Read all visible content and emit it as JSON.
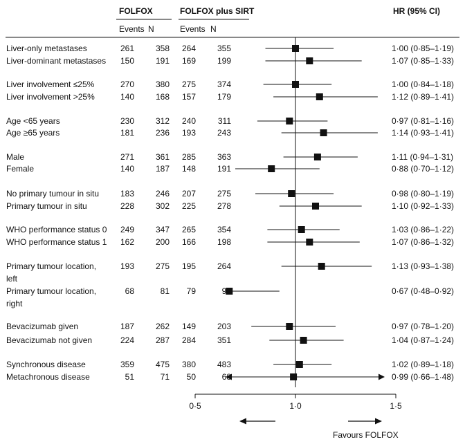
{
  "header": {
    "group1": "FOLFOX",
    "group2": "FOLFOX plus SIRT",
    "events": "Events",
    "n": "N",
    "hr_col": "HR (95% CI)"
  },
  "footer": {
    "favours": "Favours FOLFOX"
  },
  "chart_data": {
    "type": "forest",
    "xlim": [
      0.5,
      1.5
    ],
    "xticks": [
      0.5,
      1.0,
      1.5
    ],
    "xtick_labels": [
      "0·5",
      "1·0",
      "1·5"
    ],
    "reference_line": 1.0,
    "rows": [
      {
        "label": [
          "Liver-only metastases"
        ],
        "e1": "261",
        "n1": "358",
        "e2": "264",
        "n2": "355",
        "hr": 1.0,
        "lo": 0.85,
        "hi": 1.19,
        "hr_text": "1·00 (0·85–1·19)"
      },
      {
        "label": [
          "Liver-dominant metastases"
        ],
        "e1": "150",
        "n1": "191",
        "e2": "169",
        "n2": "199",
        "hr": 1.07,
        "lo": 0.85,
        "hi": 1.33,
        "hr_text": "1·07 (0·85–1·33)"
      },
      {
        "label": [
          "Liver involvement ≤25%"
        ],
        "e1": "270",
        "n1": "380",
        "e2": "275",
        "n2": "374",
        "hr": 1.0,
        "lo": 0.84,
        "hi": 1.18,
        "hr_text": "1·00 (0·84–1·18)"
      },
      {
        "label": [
          "Liver involvement >25%"
        ],
        "e1": "140",
        "n1": "168",
        "e2": "157",
        "n2": "179",
        "hr": 1.12,
        "lo": 0.89,
        "hi": 1.41,
        "hr_text": "1·12 (0·89–1·41)"
      },
      {
        "label": [
          "Age <65 years"
        ],
        "e1": "230",
        "n1": "312",
        "e2": "240",
        "n2": "311",
        "hr": 0.97,
        "lo": 0.81,
        "hi": 1.16,
        "hr_text": "0·97 (0·81–1·16)"
      },
      {
        "label": [
          "Age ≥65 years"
        ],
        "e1": "181",
        "n1": "236",
        "e2": "193",
        "n2": "243",
        "hr": 1.14,
        "lo": 0.93,
        "hi": 1.41,
        "hr_text": "1·14 (0·93–1·41)"
      },
      {
        "label": [
          "Male"
        ],
        "e1": "271",
        "n1": "361",
        "e2": "285",
        "n2": "363",
        "hr": 1.11,
        "lo": 0.94,
        "hi": 1.31,
        "hr_text": "1·11 (0·94–1·31)"
      },
      {
        "label": [
          "Female"
        ],
        "e1": "140",
        "n1": "187",
        "e2": "148",
        "n2": "191",
        "hr": 0.88,
        "lo": 0.7,
        "hi": 1.12,
        "hr_text": "0·88 (0·70–1·12)"
      },
      {
        "label": [
          "No primary tumour in situ"
        ],
        "e1": "183",
        "n1": "246",
        "e2": "207",
        "n2": "275",
        "hr": 0.98,
        "lo": 0.8,
        "hi": 1.19,
        "hr_text": "0·98 (0·80–1·19)"
      },
      {
        "label": [
          "Primary tumour in situ"
        ],
        "e1": "228",
        "n1": "302",
        "e2": "225",
        "n2": "278",
        "hr": 1.1,
        "lo": 0.92,
        "hi": 1.33,
        "hr_text": "1·10 (0·92–1·33)"
      },
      {
        "label": [
          "WHO performance status 0"
        ],
        "e1": "249",
        "n1": "347",
        "e2": "265",
        "n2": "354",
        "hr": 1.03,
        "lo": 0.86,
        "hi": 1.22,
        "hr_text": "1·03 (0·86–1·22)"
      },
      {
        "label": [
          "WHO performance status 1"
        ],
        "e1": "162",
        "n1": "200",
        "e2": "166",
        "n2": "198",
        "hr": 1.07,
        "lo": 0.86,
        "hi": 1.32,
        "hr_text": "1·07 (0·86–1·32)"
      },
      {
        "label": [
          "Primary tumour location,",
          "left"
        ],
        "e1": "193",
        "n1": "275",
        "e2": "195",
        "n2": "264",
        "hr": 1.13,
        "lo": 0.93,
        "hi": 1.38,
        "hr_text": "1·13 (0·93–1·38)"
      },
      {
        "label": [
          "Primary tumour location,",
          "right"
        ],
        "e1": "68",
        "n1": "81",
        "e2": "79",
        "n2": "98",
        "hr": 0.67,
        "lo": 0.48,
        "hi": 0.92,
        "hr_text": "0·67 (0·48–0·92)",
        "arrow_left": true
      },
      {
        "label": [
          "Bevacizumab given"
        ],
        "e1": "187",
        "n1": "262",
        "e2": "149",
        "n2": "203",
        "hr": 0.97,
        "lo": 0.78,
        "hi": 1.2,
        "hr_text": "0·97 (0·78–1·20)"
      },
      {
        "label": [
          "Bevacizumab not given"
        ],
        "e1": "224",
        "n1": "287",
        "e2": "284",
        "n2": "351",
        "hr": 1.04,
        "lo": 0.87,
        "hi": 1.24,
        "hr_text": "1·04 (0·87–1·24)"
      },
      {
        "label": [
          "Synchronous disease"
        ],
        "e1": "359",
        "n1": "475",
        "e2": "380",
        "n2": "483",
        "hr": 1.02,
        "lo": 0.89,
        "hi": 1.18,
        "hr_text": "1·02 (0·89–1·18)"
      },
      {
        "label": [
          "Metachronous disease"
        ],
        "e1": "51",
        "n1": "71",
        "e2": "50",
        "n2": "68",
        "hr": 0.99,
        "lo": 0.66,
        "hi": 1.48,
        "hr_text": "0·99 (0·66–1·48)",
        "arrow_left": true,
        "arrow_right": true
      }
    ]
  }
}
